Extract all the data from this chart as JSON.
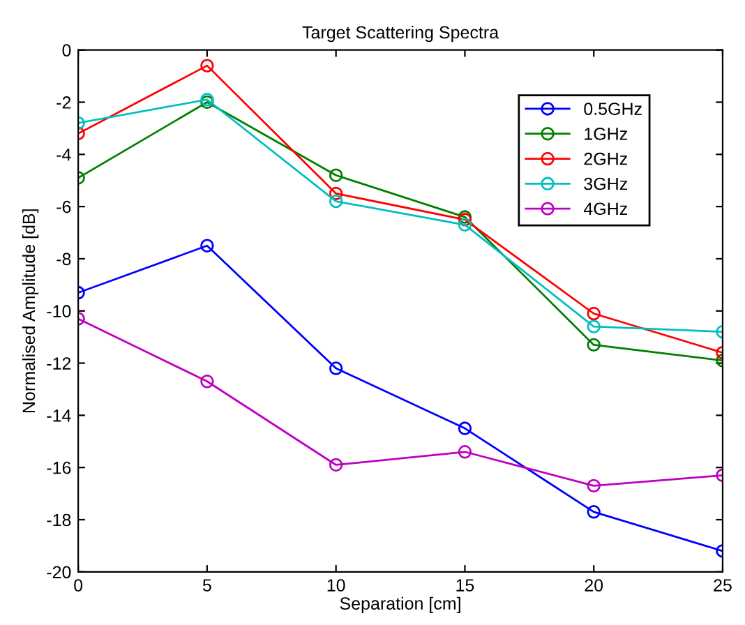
{
  "chart_data": {
    "type": "line",
    "title": "Target Scattering Spectra",
    "xlabel": "Separation [cm]",
    "ylabel": "Normalised Amplitude [dB]",
    "x": [
      0,
      5,
      10,
      15,
      20,
      25
    ],
    "series": [
      {
        "name": "0.5GHz",
        "color": "#0000ff",
        "values": [
          -9.3,
          -7.5,
          -12.2,
          -14.5,
          -17.7,
          -19.2
        ]
      },
      {
        "name": "1GHz",
        "color": "#008000",
        "values": [
          -4.9,
          -2.0,
          -4.8,
          -6.4,
          -11.3,
          -11.9
        ]
      },
      {
        "name": "2GHz",
        "color": "#ff0000",
        "values": [
          -3.2,
          -0.6,
          -5.5,
          -6.5,
          -10.1,
          -11.6
        ]
      },
      {
        "name": "3GHz",
        "color": "#00bfbf",
        "values": [
          -2.8,
          -1.9,
          -5.8,
          -6.7,
          -10.6,
          -10.8
        ]
      },
      {
        "name": "4GHz",
        "color": "#bf00bf",
        "values": [
          -10.3,
          -12.7,
          -15.9,
          -15.4,
          -16.7,
          -16.3
        ]
      }
    ],
    "xlim": [
      0,
      25
    ],
    "ylim": [
      -20,
      0
    ],
    "xticks": [
      0,
      5,
      10,
      15,
      20,
      25
    ],
    "yticks": [
      -20,
      -18,
      -16,
      -14,
      -12,
      -10,
      -8,
      -6,
      -4,
      -2,
      0
    ],
    "grid": false,
    "legend": "top right",
    "marker": "circle",
    "line_style": "solid"
  }
}
